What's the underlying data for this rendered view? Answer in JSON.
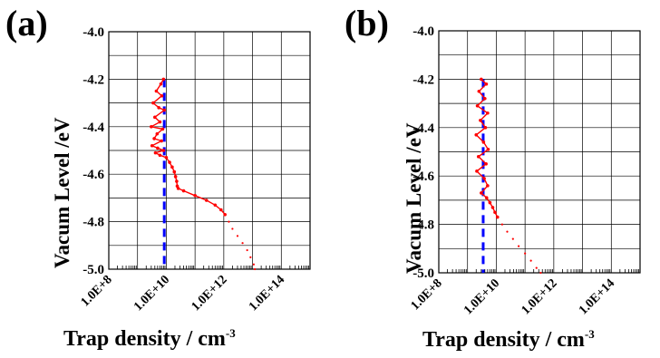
{
  "chart_data": [
    {
      "type": "scatter",
      "panel_label": "(a)",
      "xlabel": "Trap density / cm",
      "xlabel_sup": "-3",
      "ylabel": "Vacum Level /eV",
      "x_scale": "log",
      "xlim": [
        100000000.0,
        1000000000000000.0
      ],
      "ylim": [
        -5.0,
        -4.0
      ],
      "x_ticks": [
        100000000.0,
        10000000000.0,
        1000000000000.0,
        100000000000000.0
      ],
      "x_tick_labels": [
        "1.0E+8",
        "1.0E+10",
        "1.0E+12",
        "1.0E+14"
      ],
      "y_ticks": [
        -4.0,
        -4.2,
        -4.4,
        -4.6,
        -4.8,
        -5.0
      ],
      "y_tick_labels": [
        "-4.0",
        "-4.2",
        "-4.4",
        "-4.6",
        "-4.8",
        "-5.0"
      ],
      "grid": true,
      "data_color": "#ff0000",
      "reference_color": "#0000ff",
      "reference_line": {
        "x": 8500000000.0,
        "y_from": -4.2,
        "y_to": -5.0,
        "style": "dashed"
      },
      "dense_points": [
        [
          8000000000.0,
          -4.2
        ],
        [
          6500000000.0,
          -4.22
        ],
        [
          4500000000.0,
          -4.25
        ],
        [
          7000000000.0,
          -4.27
        ],
        [
          3500000000.0,
          -4.3
        ],
        [
          5500000000.0,
          -4.32
        ],
        [
          8500000000.0,
          -4.33
        ],
        [
          4000000000.0,
          -4.36
        ],
        [
          6000000000.0,
          -4.38
        ],
        [
          3000000000.0,
          -4.4
        ],
        [
          7500000000.0,
          -4.41
        ],
        [
          4800000000.0,
          -4.43
        ],
        [
          3800000000.0,
          -4.45
        ],
        [
          6800000000.0,
          -4.46
        ],
        [
          3200000000.0,
          -4.48
        ],
        [
          5000000000.0,
          -4.49
        ],
        [
          8000000000.0,
          -4.5
        ],
        [
          4200000000.0,
          -4.51
        ],
        [
          6000000000.0,
          -4.52
        ],
        [
          10000000000.0,
          -4.53
        ],
        [
          13000000000.0,
          -4.55
        ],
        [
          16000000000.0,
          -4.57
        ],
        [
          19000000000.0,
          -4.59
        ],
        [
          21000000000.0,
          -4.61
        ],
        [
          23000000000.0,
          -4.63
        ],
        [
          24000000000.0,
          -4.65
        ],
        [
          26000000000.0,
          -4.66
        ],
        [
          40000000000.0,
          -4.67
        ],
        [
          100000000000.0,
          -4.69
        ],
        [
          250000000000.0,
          -4.71
        ],
        [
          500000000000.0,
          -4.73
        ],
        [
          800000000000.0,
          -4.75
        ],
        [
          1100000000000.0,
          -4.77
        ]
      ],
      "sparse_points": [
        [
          1500000000000.0,
          -4.8
        ],
        [
          2000000000000.0,
          -4.83
        ],
        [
          3000000000000.0,
          -4.86
        ],
        [
          4500000000000.0,
          -4.89
        ],
        [
          6500000000000.0,
          -4.92
        ],
        [
          8500000000000.0,
          -4.95
        ],
        [
          11000000000000.0,
          -4.98
        ],
        [
          12000000000000.0,
          -5.0
        ]
      ]
    },
    {
      "type": "scatter",
      "panel_label": "(b)",
      "xlabel": "Trap density / cm",
      "xlabel_sup": "-3",
      "ylabel": "Vacum Level /eV",
      "x_scale": "log",
      "xlim": [
        100000000.0,
        1000000000000000.0
      ],
      "ylim": [
        -5.0,
        -4.0
      ],
      "x_ticks": [
        100000000.0,
        10000000000.0,
        1000000000000.0,
        100000000000000.0
      ],
      "x_tick_labels": [
        "1.0E+8",
        "1.0E+10",
        "1.0E+12",
        "1.0E+14"
      ],
      "y_ticks": [
        -4.0,
        -4.2,
        -4.4,
        -4.6,
        -4.8,
        -5.0
      ],
      "y_tick_labels": [
        "-4.0",
        "-4.2",
        "-4.4",
        "-4.6",
        "-4.8",
        "-5.0"
      ],
      "grid": true,
      "data_color": "#ff0000",
      "reference_color": "#0000ff",
      "reference_line": {
        "x": 3500000000.0,
        "y_from": -4.2,
        "y_to": -5.0,
        "style": "dashed"
      },
      "dense_points": [
        [
          3000000000.0,
          -4.2
        ],
        [
          4500000000.0,
          -4.22
        ],
        [
          2500000000.0,
          -4.25
        ],
        [
          4000000000.0,
          -4.28
        ],
        [
          2200000000.0,
          -4.31
        ],
        [
          5000000000.0,
          -4.34
        ],
        [
          2800000000.0,
          -4.37
        ],
        [
          4200000000.0,
          -4.4
        ],
        [
          2000000000.0,
          -4.43
        ],
        [
          3600000000.0,
          -4.46
        ],
        [
          5200000000.0,
          -4.49
        ],
        [
          2400000000.0,
          -4.52
        ],
        [
          4400000000.0,
          -4.55
        ],
        [
          2100000000.0,
          -4.58
        ],
        [
          3800000000.0,
          -4.61
        ],
        [
          5000000000.0,
          -4.64
        ],
        [
          3000000000.0,
          -4.67
        ],
        [
          4600000000.0,
          -4.69
        ],
        [
          6000000000.0,
          -4.71
        ],
        [
          7500000000.0,
          -4.73
        ],
        [
          9000000000.0,
          -4.75
        ],
        [
          11000000000.0,
          -4.77
        ]
      ],
      "sparse_points": [
        [
          16000000000.0,
          -4.8
        ],
        [
          24000000000.0,
          -4.83
        ],
        [
          38000000000.0,
          -4.86
        ],
        [
          60000000000.0,
          -4.89
        ],
        [
          100000000000.0,
          -4.92
        ],
        [
          160000000000.0,
          -4.95
        ],
        [
          250000000000.0,
          -4.98
        ],
        [
          350000000000.0,
          -5.0
        ]
      ]
    }
  ]
}
